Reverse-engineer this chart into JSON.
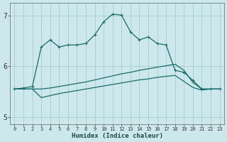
{
  "xlabel": "Humidex (Indice chaleur)",
  "bg_color": "#cce8ec",
  "grid_color": "#aacccc",
  "line_color": "#1a6b6b",
  "xlim": [
    -0.5,
    23.5
  ],
  "ylim": [
    4.85,
    7.25
  ],
  "yticks": [
    5,
    6,
    7
  ],
  "xticks": [
    0,
    1,
    2,
    3,
    4,
    5,
    6,
    7,
    8,
    9,
    10,
    11,
    12,
    13,
    14,
    15,
    16,
    17,
    18,
    19,
    20,
    21,
    22,
    23
  ],
  "series1_x": [
    0,
    1,
    2,
    3,
    4,
    5,
    6,
    7,
    8,
    9,
    10,
    11,
    12,
    13,
    14,
    15,
    16,
    17,
    18,
    19,
    20,
    21,
    22,
    23
  ],
  "series1_y": [
    5.55,
    5.57,
    5.6,
    6.38,
    6.52,
    6.38,
    6.42,
    6.42,
    6.45,
    6.62,
    6.88,
    7.03,
    7.01,
    6.68,
    6.52,
    6.58,
    6.45,
    6.42,
    5.92,
    5.88,
    5.72,
    5.55,
    5.55,
    5.55
  ],
  "series2_x": [
    0,
    1,
    2,
    3,
    4,
    5,
    6,
    7,
    8,
    9,
    10,
    11,
    12,
    13,
    14,
    15,
    16,
    17,
    18,
    19,
    20,
    21,
    22,
    23
  ],
  "series2_y": [
    5.55,
    5.55,
    5.55,
    5.55,
    5.57,
    5.6,
    5.63,
    5.66,
    5.69,
    5.73,
    5.77,
    5.81,
    5.85,
    5.88,
    5.92,
    5.95,
    5.98,
    6.01,
    6.04,
    5.92,
    5.68,
    5.55,
    5.55,
    5.55
  ],
  "series3_x": [
    0,
    1,
    2,
    3,
    4,
    5,
    6,
    7,
    8,
    9,
    10,
    11,
    12,
    13,
    14,
    15,
    16,
    17,
    18,
    19,
    20,
    21,
    22,
    23
  ],
  "series3_y": [
    5.55,
    5.55,
    5.55,
    5.38,
    5.42,
    5.46,
    5.49,
    5.52,
    5.55,
    5.58,
    5.61,
    5.64,
    5.67,
    5.7,
    5.73,
    5.75,
    5.78,
    5.8,
    5.82,
    5.7,
    5.58,
    5.53,
    5.55,
    5.55
  ]
}
